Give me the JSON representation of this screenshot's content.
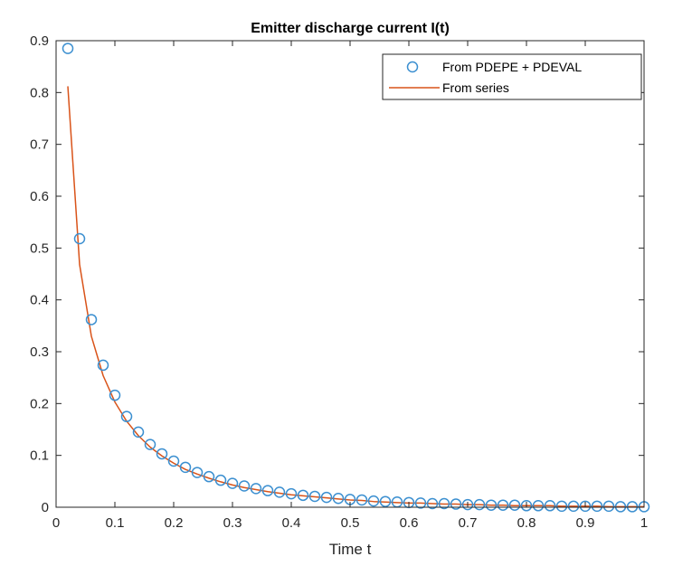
{
  "chart_data": {
    "type": "line",
    "title": "Emitter discharge current I(t)",
    "xlabel": "Time t",
    "ylabel": "",
    "xlim": [
      0,
      1
    ],
    "ylim": [
      0,
      0.9
    ],
    "xticks": [
      "0",
      "0.1",
      "0.2",
      "0.3",
      "0.4",
      "0.5",
      "0.6",
      "0.7",
      "0.8",
      "0.9",
      "1"
    ],
    "yticks": [
      "0",
      "0.1",
      "0.2",
      "0.3",
      "0.4",
      "0.5",
      "0.6",
      "0.7",
      "0.8",
      "0.9"
    ],
    "grid": false,
    "legend_position": "top-right",
    "series": [
      {
        "name": "From PDEPE + PDEVAL",
        "style": "markers",
        "color": "#3b8fd0",
        "x": [
          0.02,
          0.04,
          0.06,
          0.08,
          0.1,
          0.12,
          0.14,
          0.16,
          0.18,
          0.2,
          0.22,
          0.24,
          0.26,
          0.28,
          0.3,
          0.32,
          0.34,
          0.36,
          0.38,
          0.4,
          0.42,
          0.44,
          0.46,
          0.48,
          0.5,
          0.52,
          0.54,
          0.56,
          0.58,
          0.6,
          0.62,
          0.64,
          0.66,
          0.68,
          0.7,
          0.72,
          0.74,
          0.76,
          0.78,
          0.8,
          0.82,
          0.84,
          0.86,
          0.88,
          0.9,
          0.92,
          0.94,
          0.96,
          0.98,
          1.0
        ],
        "y": [
          0.885,
          0.518,
          0.362,
          0.274,
          0.216,
          0.175,
          0.145,
          0.121,
          0.103,
          0.089,
          0.077,
          0.067,
          0.059,
          0.052,
          0.046,
          0.041,
          0.036,
          0.032,
          0.029,
          0.026,
          0.023,
          0.021,
          0.019,
          0.017,
          0.015,
          0.014,
          0.012,
          0.011,
          0.01,
          0.009,
          0.008,
          0.007,
          0.007,
          0.006,
          0.005,
          0.005,
          0.004,
          0.004,
          0.004,
          0.003,
          0.003,
          0.003,
          0.002,
          0.002,
          0.002,
          0.002,
          0.002,
          0.001,
          0.001,
          0.001
        ]
      },
      {
        "name": "From series",
        "style": "line",
        "color": "#d95319",
        "x": [
          0.02,
          0.04,
          0.06,
          0.08,
          0.1,
          0.12,
          0.14,
          0.16,
          0.18,
          0.2,
          0.22,
          0.24,
          0.26,
          0.28,
          0.3,
          0.32,
          0.34,
          0.36,
          0.38,
          0.4,
          0.42,
          0.44,
          0.46,
          0.48,
          0.5,
          0.52,
          0.54,
          0.56,
          0.58,
          0.6,
          0.62,
          0.64,
          0.66,
          0.68,
          0.7,
          0.72,
          0.74,
          0.76,
          0.78,
          0.8,
          0.82,
          0.84,
          0.86,
          0.88,
          0.9,
          0.92,
          0.94,
          0.96,
          0.98,
          1.0
        ],
        "y": [
          0.812,
          0.468,
          0.33,
          0.254,
          0.203,
          0.166,
          0.138,
          0.116,
          0.099,
          0.085,
          0.073,
          0.064,
          0.056,
          0.049,
          0.043,
          0.038,
          0.034,
          0.03,
          0.027,
          0.024,
          0.022,
          0.02,
          0.018,
          0.016,
          0.014,
          0.013,
          0.011,
          0.01,
          0.009,
          0.008,
          0.008,
          0.007,
          0.006,
          0.006,
          0.005,
          0.005,
          0.004,
          0.004,
          0.003,
          0.003,
          0.003,
          0.003,
          0.002,
          0.002,
          0.002,
          0.002,
          0.001,
          0.001,
          0.001,
          0.001
        ]
      }
    ]
  }
}
